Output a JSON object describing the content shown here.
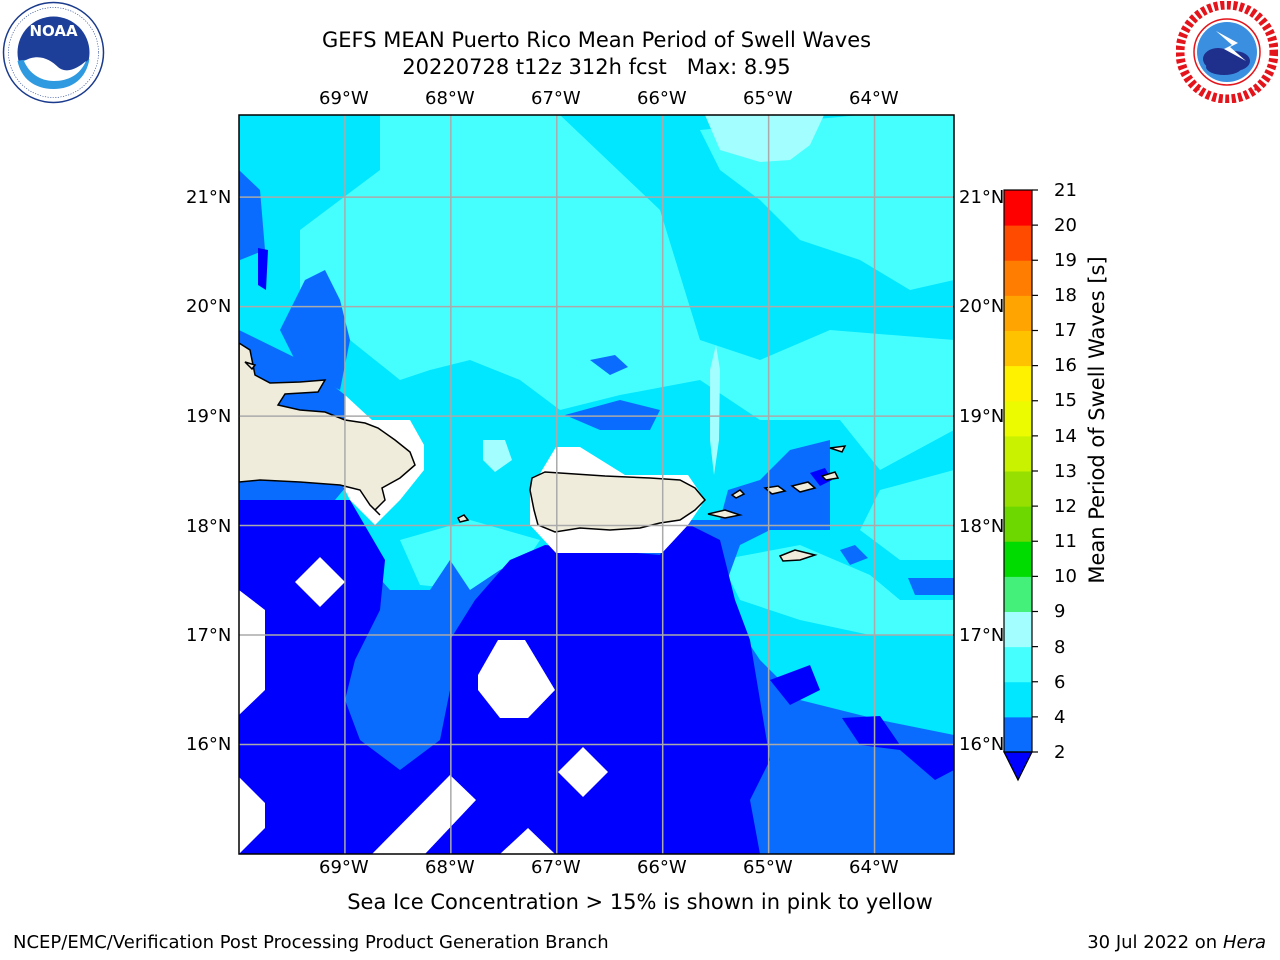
{
  "title": {
    "line1": "GEFS MEAN Puerto Rico Mean Period of Swell Waves",
    "line2": "20220728 t12z 312h fcst   Max: 8.95"
  },
  "logos": {
    "left": {
      "icon": "noaa-logo",
      "text": "NOAA"
    },
    "right": {
      "icon": "national-weather-service-logo"
    }
  },
  "map": {
    "lon_labels": [
      "69°W",
      "68°W",
      "67°W",
      "66°W",
      "65°W",
      "64°W"
    ],
    "lat_labels": [
      "21°N",
      "20°N",
      "19°N",
      "18°N",
      "17°N",
      "16°N"
    ],
    "extent": {
      "lon": [
        -70.0,
        -63.25
      ],
      "lat": [
        15.0,
        21.75
      ]
    },
    "gridlines": true
  },
  "colorbar": {
    "label": "Mean Period of Swell Waves [s]",
    "levels": [
      2,
      4,
      6,
      8,
      9,
      10,
      11,
      12,
      13,
      14,
      15,
      16,
      17,
      18,
      19,
      20,
      21
    ],
    "colors": [
      "#0a6cff",
      "#00e7ff",
      "#45ffff",
      "#a3ffff",
      "#44f07a",
      "#00db00",
      "#6cd800",
      "#97df00",
      "#c8f200",
      "#ecfb00",
      "#fff200",
      "#ffc200",
      "#ffa400",
      "#ff7d00",
      "#ff4b00",
      "#ff0000"
    ],
    "under_color": "#0000ff",
    "extend": "min"
  },
  "note": "Sea Ice Concentration > 15% is shown in pink to yellow",
  "footer": {
    "left": "NCEP/EMC/Verification Post Processing Product Generation Branch",
    "right_date": "30 Jul 2022 on ",
    "right_machine": "Hera"
  }
}
